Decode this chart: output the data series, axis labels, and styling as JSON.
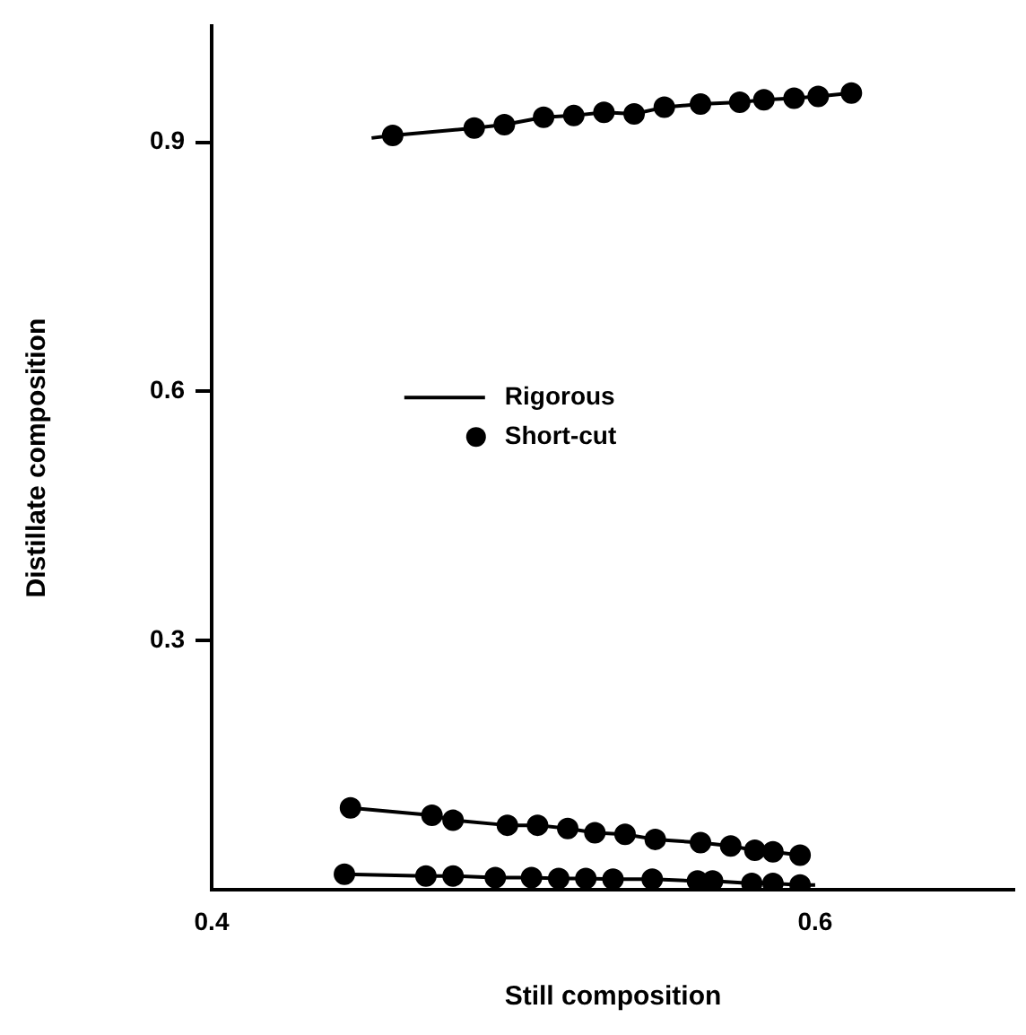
{
  "chart_data": {
    "type": "scatter",
    "xlabel": "Still composition",
    "ylabel": "Distillate composition",
    "xlim": [
      0.4,
      0.666
    ],
    "ylim": [
      0,
      1.04
    ],
    "xticks": [
      0.4,
      0.6
    ],
    "yticks": [
      0.3,
      0.6,
      0.9
    ],
    "grid": false,
    "legend": "left",
    "series": [
      {
        "name": "Rigorous",
        "type": "line",
        "color": "#000000",
        "marker": "none",
        "line_style": "solid",
        "x": [
          0.453,
          0.46,
          0.487,
          0.497,
          0.51,
          0.52,
          0.53,
          0.54,
          0.55,
          0.562,
          0.575,
          0.583,
          0.593,
          0.601,
          0.612
        ],
        "values": [
          0.905,
          0.908,
          0.917,
          0.921,
          0.93,
          0.932,
          0.936,
          0.934,
          0.942,
          0.946,
          0.948,
          0.951,
          0.953,
          0.955,
          0.959
        ]
      },
      {
        "type": "line",
        "color": "#000000",
        "marker": "none",
        "line_style": "solid",
        "x": [
          0.446,
          0.473,
          0.48,
          0.498,
          0.508,
          0.518,
          0.527,
          0.537,
          0.547,
          0.562,
          0.572,
          0.58,
          0.586,
          0.595
        ],
        "values": [
          0.099,
          0.09,
          0.084,
          0.078,
          0.078,
          0.074,
          0.069,
          0.067,
          0.061,
          0.057,
          0.053,
          0.048,
          0.046,
          0.042
        ]
      },
      {
        "type": "line",
        "color": "#000000",
        "marker": "none",
        "line_style": "solid",
        "x": [
          0.444,
          0.471,
          0.48,
          0.494,
          0.506,
          0.515,
          0.524,
          0.533,
          0.546,
          0.561,
          0.566,
          0.579,
          0.586,
          0.595,
          0.6
        ],
        "values": [
          0.019,
          0.017,
          0.017,
          0.015,
          0.015,
          0.014,
          0.014,
          0.013,
          0.013,
          0.011,
          0.011,
          0.008,
          0.008,
          0.006,
          0.006
        ]
      },
      {
        "name": "Short-cut",
        "color": "#000000",
        "marker": "circle",
        "x": [
          0.46,
          0.487,
          0.497,
          0.51,
          0.52,
          0.53,
          0.54,
          0.55,
          0.562,
          0.575,
          0.583,
          0.593,
          0.601,
          0.612,
          0.446,
          0.473,
          0.48,
          0.498,
          0.508,
          0.518,
          0.527,
          0.537,
          0.547,
          0.562,
          0.572,
          0.58,
          0.586,
          0.595,
          0.444,
          0.471,
          0.48,
          0.494,
          0.506,
          0.515,
          0.524,
          0.533,
          0.546,
          0.561,
          0.566,
          0.579,
          0.586,
          0.595
        ],
        "values": [
          0.908,
          0.917,
          0.921,
          0.93,
          0.932,
          0.936,
          0.934,
          0.942,
          0.946,
          0.948,
          0.951,
          0.953,
          0.955,
          0.959,
          0.099,
          0.09,
          0.084,
          0.078,
          0.078,
          0.074,
          0.069,
          0.067,
          0.061,
          0.057,
          0.053,
          0.048,
          0.046,
          0.042,
          0.019,
          0.017,
          0.017,
          0.015,
          0.015,
          0.014,
          0.014,
          0.013,
          0.013,
          0.011,
          0.011,
          0.008,
          0.008,
          0.006
        ]
      }
    ]
  }
}
